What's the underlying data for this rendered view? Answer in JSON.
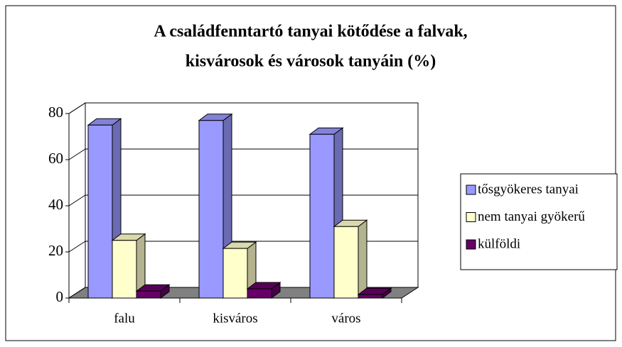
{
  "chart_data": {
    "type": "bar3d",
    "title": [
      "A családfenntartó tanyai kötődése a falvak,",
      "kisvárosok és városok tanyáin (%)"
    ],
    "categories": [
      "falu",
      "kisváros",
      "város"
    ],
    "series": [
      {
        "name": "tősgyökeres tanyai",
        "color": "#9999ff",
        "values": [
          75,
          77,
          71
        ]
      },
      {
        "name": "nem tanyai gyökerű",
        "color": "#ffffcc",
        "values": [
          25,
          21.5,
          31
        ]
      },
      {
        "name": "külföldi",
        "color": "#660066",
        "values": [
          3,
          4,
          1.5
        ]
      }
    ],
    "ylim": [
      0,
      80
    ],
    "yticks": [
      0,
      20,
      40,
      60,
      80
    ],
    "grid": true,
    "legend": "right"
  }
}
